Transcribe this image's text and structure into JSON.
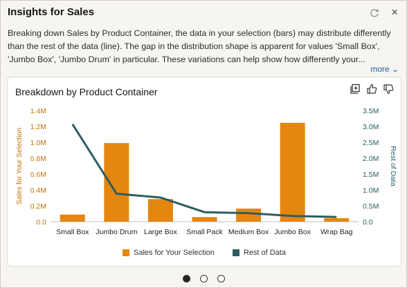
{
  "header": {
    "title": "Insights for Sales",
    "close_label": "×"
  },
  "description": "Breaking down Sales by Product Container, the data in your selection (bars) may distribute differently than the rest of the data (line). The gap in the distribution shape is apparent for values 'Small Box', 'Jumbo Box', 'Jumbo Drum' in particular. These variations can help show how differently your...",
  "more_label": "more ⌄",
  "colors": {
    "bar": "#e5860f",
    "line": "#2b5d61"
  },
  "chart_data": {
    "type": "bar",
    "title": "Breakdown by Product Container",
    "categories": [
      "Small Box",
      "Jumbo Drum",
      "Large Box",
      "Small Pack",
      "Medium Box",
      "Jumbo Box",
      "Wrap Bag"
    ],
    "series": [
      {
        "name": "Sales for Your Selection",
        "type": "bar",
        "axis": "left",
        "values": [
          90000,
          990000,
          285000,
          58000,
          165000,
          1245000,
          45000
        ]
      },
      {
        "name": "Rest of Data",
        "type": "line",
        "axis": "right",
        "values": [
          3070000,
          880000,
          760000,
          300000,
          270000,
          180000,
          150000
        ]
      }
    ],
    "ylabel": "Sales for Your Selection",
    "ylabel_right": "Rest of Data",
    "ylim": [
      0,
      1400000
    ],
    "ylim_right": [
      0,
      3500000
    ],
    "yticks": [
      "0.0",
      "0.2M",
      "0.4M",
      "0.6M",
      "0.8M",
      "1.0M",
      "1.2M",
      "1.4M"
    ],
    "yticks_right": [
      "0.0",
      "0.5M",
      "1.0M",
      "1.5M",
      "2.0M",
      "2.5M",
      "3.0M",
      "3.5M"
    ],
    "legend": "bottom"
  },
  "pagination": {
    "count": 3,
    "active": 0
  }
}
